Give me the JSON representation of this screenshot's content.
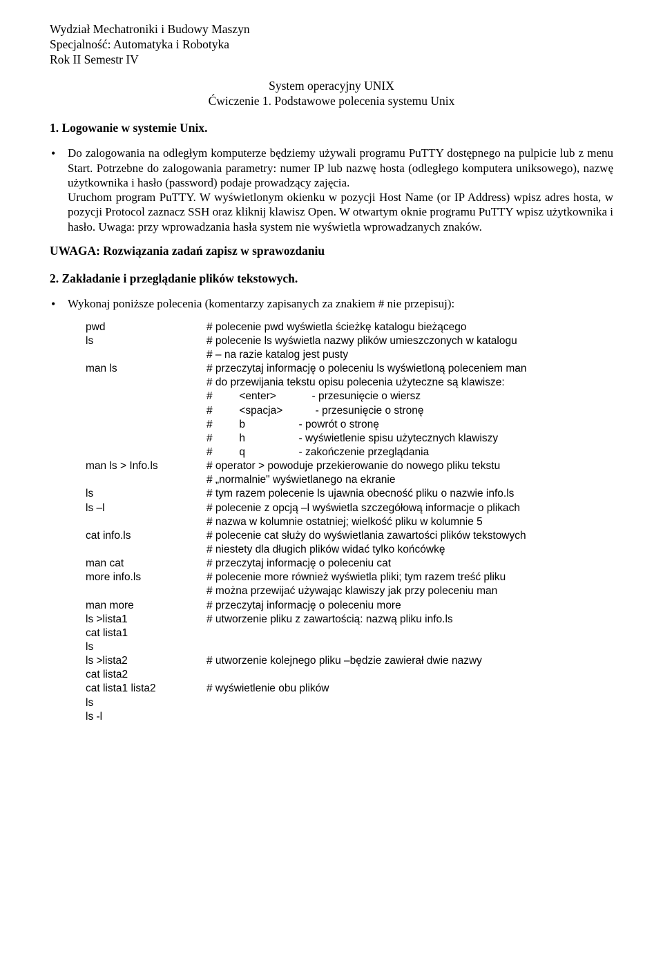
{
  "header": {
    "l1": "Wydział Mechatroniki i Budowy Maszyn",
    "l2": "Specjalność: Automatyka i Robotyka",
    "l3": "Rok II  Semestr IV"
  },
  "title": {
    "l1": "System operacyjny UNIX",
    "l2": "Ćwiczenie 1. Podstawowe polecenia systemu Unix"
  },
  "s1": {
    "heading": "1.   Logowanie w systemie Unix.",
    "para": "Do zalogowania na odległym komputerze będziemy używali programu PuTTY dostępnego na pulpicie lub z menu Start. Potrzebne do zalogowania parametry: numer IP lub nazwę hosta (odległego komputera uniksowego), nazwę użytkownika i hasło (password) podaje prowadzący zajęcia.\nUruchom program PuTTY. W wyświetlonym okienku w pozycji Host Name (or IP Address) wpisz adres hosta, w pozycji Protocol zaznacz SSH oraz kliknij klawisz Open. W otwartym oknie programu PuTTY wpisz użytkownika i hasło. Uwaga: przy wprowadzania hasła system nie wyświetla wprowadzanych znaków."
  },
  "uwaga": "UWAGA: Rozwiązania zadań zapisz w sprawozdaniu",
  "s2": {
    "heading": "2.   Zakładanie i przeglądanie plików tekstowych.",
    "intro": "Wykonaj poniższe polecenia (komentarzy zapisanych za znakiem # nie przepisuj):"
  },
  "cmds": [
    {
      "l": "pwd",
      "r": "# polecenie pwd wyświetla ścieżkę katalogu bieżącego"
    },
    {
      "l": "ls",
      "r": "# polecenie ls wyświetla nazwy plików umieszczonych w katalogu"
    },
    {
      "l": "",
      "r": "# – na razie katalog jest pusty"
    },
    {
      "l": "man ls",
      "r": "# przeczytaj informację o poleceniu ls wyświetloną poleceniem man"
    },
    {
      "l": "",
      "r": "# do przewijania tekstu opisu polecenia użyteczne są klawisze:"
    },
    {
      "l": "",
      "r": "#         <enter>            - przesunięcie o wiersz"
    },
    {
      "l": "",
      "r": "#         <spacja>           - przesunięcie o stronę"
    },
    {
      "l": "",
      "r": "#         b                  - powrót o stronę"
    },
    {
      "l": "",
      "r": "#         h                  - wyświetlenie spisu użytecznych klawiszy"
    },
    {
      "l": "",
      "r": "#         q                  - zakończenie przeglądania"
    },
    {
      "l": "man ls > Info.ls",
      "r": "# operator > powoduje przekierowanie do nowego pliku tekstu"
    },
    {
      "l": "",
      "r": "# „normalnie\" wyświetlanego na ekranie"
    },
    {
      "l": "ls",
      "r": "# tym razem polecenie ls ujawnia obecność pliku o nazwie info.ls"
    },
    {
      "l": "ls –l",
      "r": "# polecenie z opcją –l wyświetla szczegółową informacje o plikach"
    },
    {
      "l": "",
      "r": "# nazwa w kolumnie ostatniej; wielkość pliku w kolumnie 5"
    },
    {
      "l": "cat info.ls",
      "r": "# polecenie cat służy do wyświetlania zawartości plików tekstowych"
    },
    {
      "l": "",
      "r": "# niestety dla długich plików widać tylko końcówkę"
    },
    {
      "l": "man cat",
      "r": "# przeczytaj informację o poleceniu cat"
    },
    {
      "l": "more info.ls",
      "r": "# polecenie more również wyświetla pliki; tym razem treść pliku"
    },
    {
      "l": "",
      "r": "# można przewijać używając klawiszy jak przy poleceniu man"
    },
    {
      "l": "man more",
      "r": "# przeczytaj informację o poleceniu more"
    },
    {
      "l": "ls >lista1",
      "r": "# utworzenie pliku z zawartością: nazwą pliku info.ls"
    },
    {
      "l": "cat lista1",
      "r": ""
    },
    {
      "l": "ls",
      "r": ""
    },
    {
      "l": "ls >lista2",
      "r": "# utworzenie kolejnego pliku –będzie zawierał dwie nazwy"
    },
    {
      "l": "cat lista2",
      "r": ""
    },
    {
      "l": "cat lista1 lista2",
      "r": "# wyświetlenie obu plików"
    },
    {
      "l": "ls",
      "r": ""
    },
    {
      "l": "ls -l",
      "r": ""
    }
  ]
}
